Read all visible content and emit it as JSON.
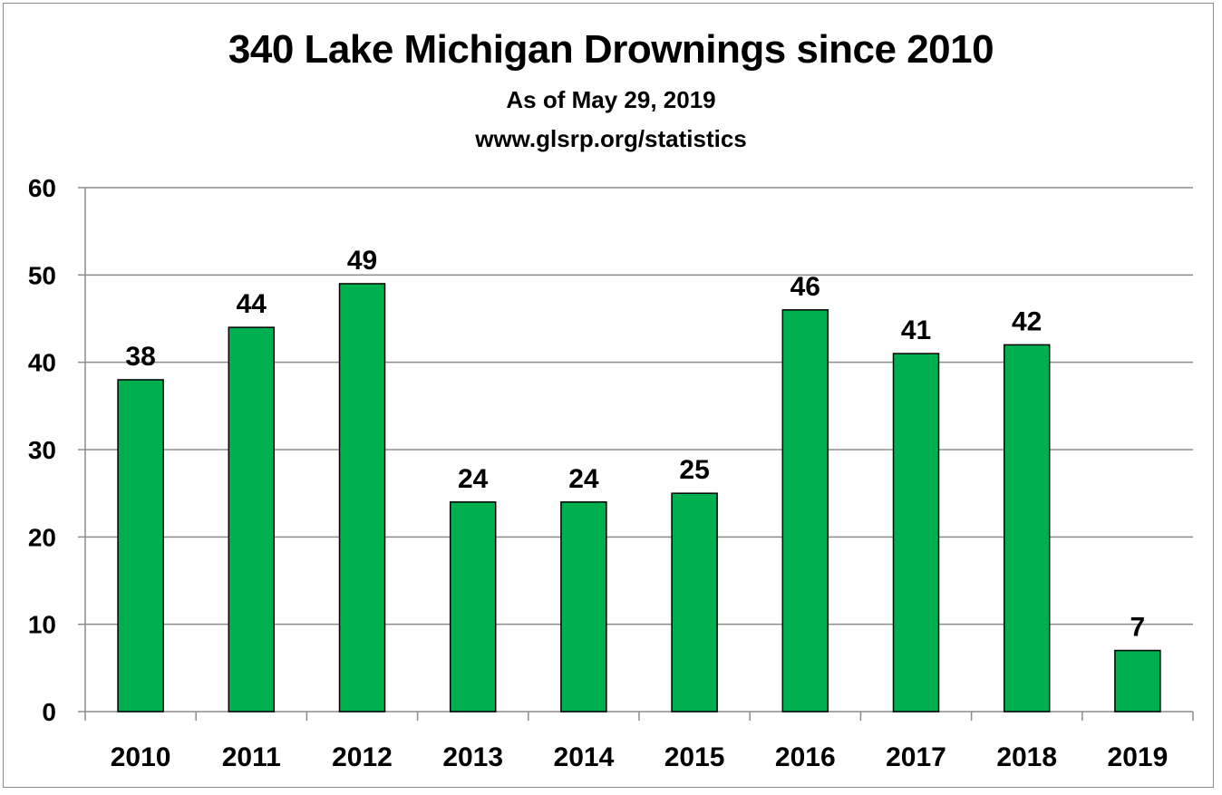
{
  "chart_data": {
    "type": "bar",
    "title": "340 Lake Michigan Drownings since 2010",
    "subtitles": [
      "As of May 29, 2019",
      "www.glsrp.org/statistics"
    ],
    "categories": [
      "2010",
      "2011",
      "2012",
      "2013",
      "2014",
      "2015",
      "2016",
      "2017",
      "2018",
      "2019"
    ],
    "values": [
      38,
      44,
      49,
      24,
      24,
      25,
      46,
      41,
      42,
      7
    ],
    "ylim": [
      0,
      60
    ],
    "yticks": [
      0,
      10,
      20,
      30,
      40,
      50,
      60
    ],
    "xlabel": "",
    "ylabel": "",
    "grid": true,
    "bar_color": "#00b050",
    "legend": "none"
  }
}
